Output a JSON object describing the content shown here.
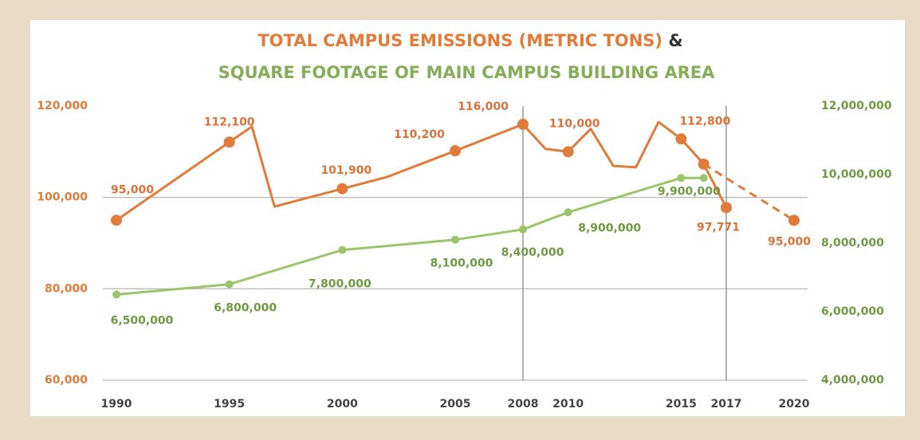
{
  "chart_data": {
    "type": "line",
    "title": "TOTAL CAMPUS EMISSIONS (METRIC TONS)",
    "title_joiner": "&",
    "subtitle": "SQUARE FOOTAGE OF MAIN CAMPUS BUILDING AREA",
    "xlim": [
      1989.4,
      2020.6
    ],
    "xticks": [
      1990,
      1995,
      2000,
      2005,
      2008,
      2010,
      2015,
      2017,
      2020
    ],
    "ylim": [
      60000,
      120000
    ],
    "yticks": [
      {
        "value": 60000,
        "label": "60,000"
      },
      {
        "value": 80000,
        "label": "80,000"
      },
      {
        "value": 100000,
        "label": "100,000"
      },
      {
        "value": 120000,
        "label": "120,000"
      }
    ],
    "y2lim": [
      4000000,
      12000000
    ],
    "y2ticks": [
      {
        "value": 4000000,
        "label": "4,000,000"
      },
      {
        "value": 6000000,
        "label": "6,000,000"
      },
      {
        "value": 8000000,
        "label": "8,000,000"
      },
      {
        "value": 10000000,
        "label": "10,000,000"
      },
      {
        "value": 12000000,
        "label": "12,000,000"
      }
    ],
    "grid": true,
    "highlight_x": [
      2008,
      2017
    ],
    "series": [
      {
        "color": "#e07b39",
        "axis": "y",
        "x": [
          1990,
          1995,
          1996,
          1997,
          2000,
          2002,
          2005,
          2008,
          2009,
          2010,
          2011,
          2012,
          2013,
          2014,
          2015,
          2016,
          2017
        ],
        "values": [
          95000,
          112100,
          115500,
          98000,
          101900,
          104500,
          110200,
          116000,
          110600,
          110000,
          115000,
          106900,
          106600,
          116500,
          112800,
          107300,
          97771
        ],
        "value_labels": [
          "95,000",
          "112,100",
          null,
          null,
          "101,900",
          null,
          "110,200",
          "116,000",
          null,
          "110,000",
          null,
          null,
          null,
          null,
          "112,800",
          null,
          "97,771"
        ]
      },
      {
        "color": "#e07b39",
        "axis": "y",
        "dashed": true,
        "x": [
          2016,
          2020
        ],
        "values": [
          107300,
          95000
        ],
        "value_labels": [
          null,
          "95,000"
        ]
      },
      {
        "color": "#9cc46a",
        "axis": "y2",
        "x": [
          1990,
          1995,
          2000,
          2005,
          2008,
          2010,
          2015,
          2016
        ],
        "values": [
          6500000,
          6800000,
          7800000,
          8100000,
          8400000,
          8900000,
          9900000,
          9900000
        ],
        "value_labels": [
          "6,500,000",
          "6,800,000",
          "7,800,000",
          "8,100,000",
          "8,400,000",
          "8,900,000",
          "9,900,000",
          null
        ]
      }
    ]
  }
}
